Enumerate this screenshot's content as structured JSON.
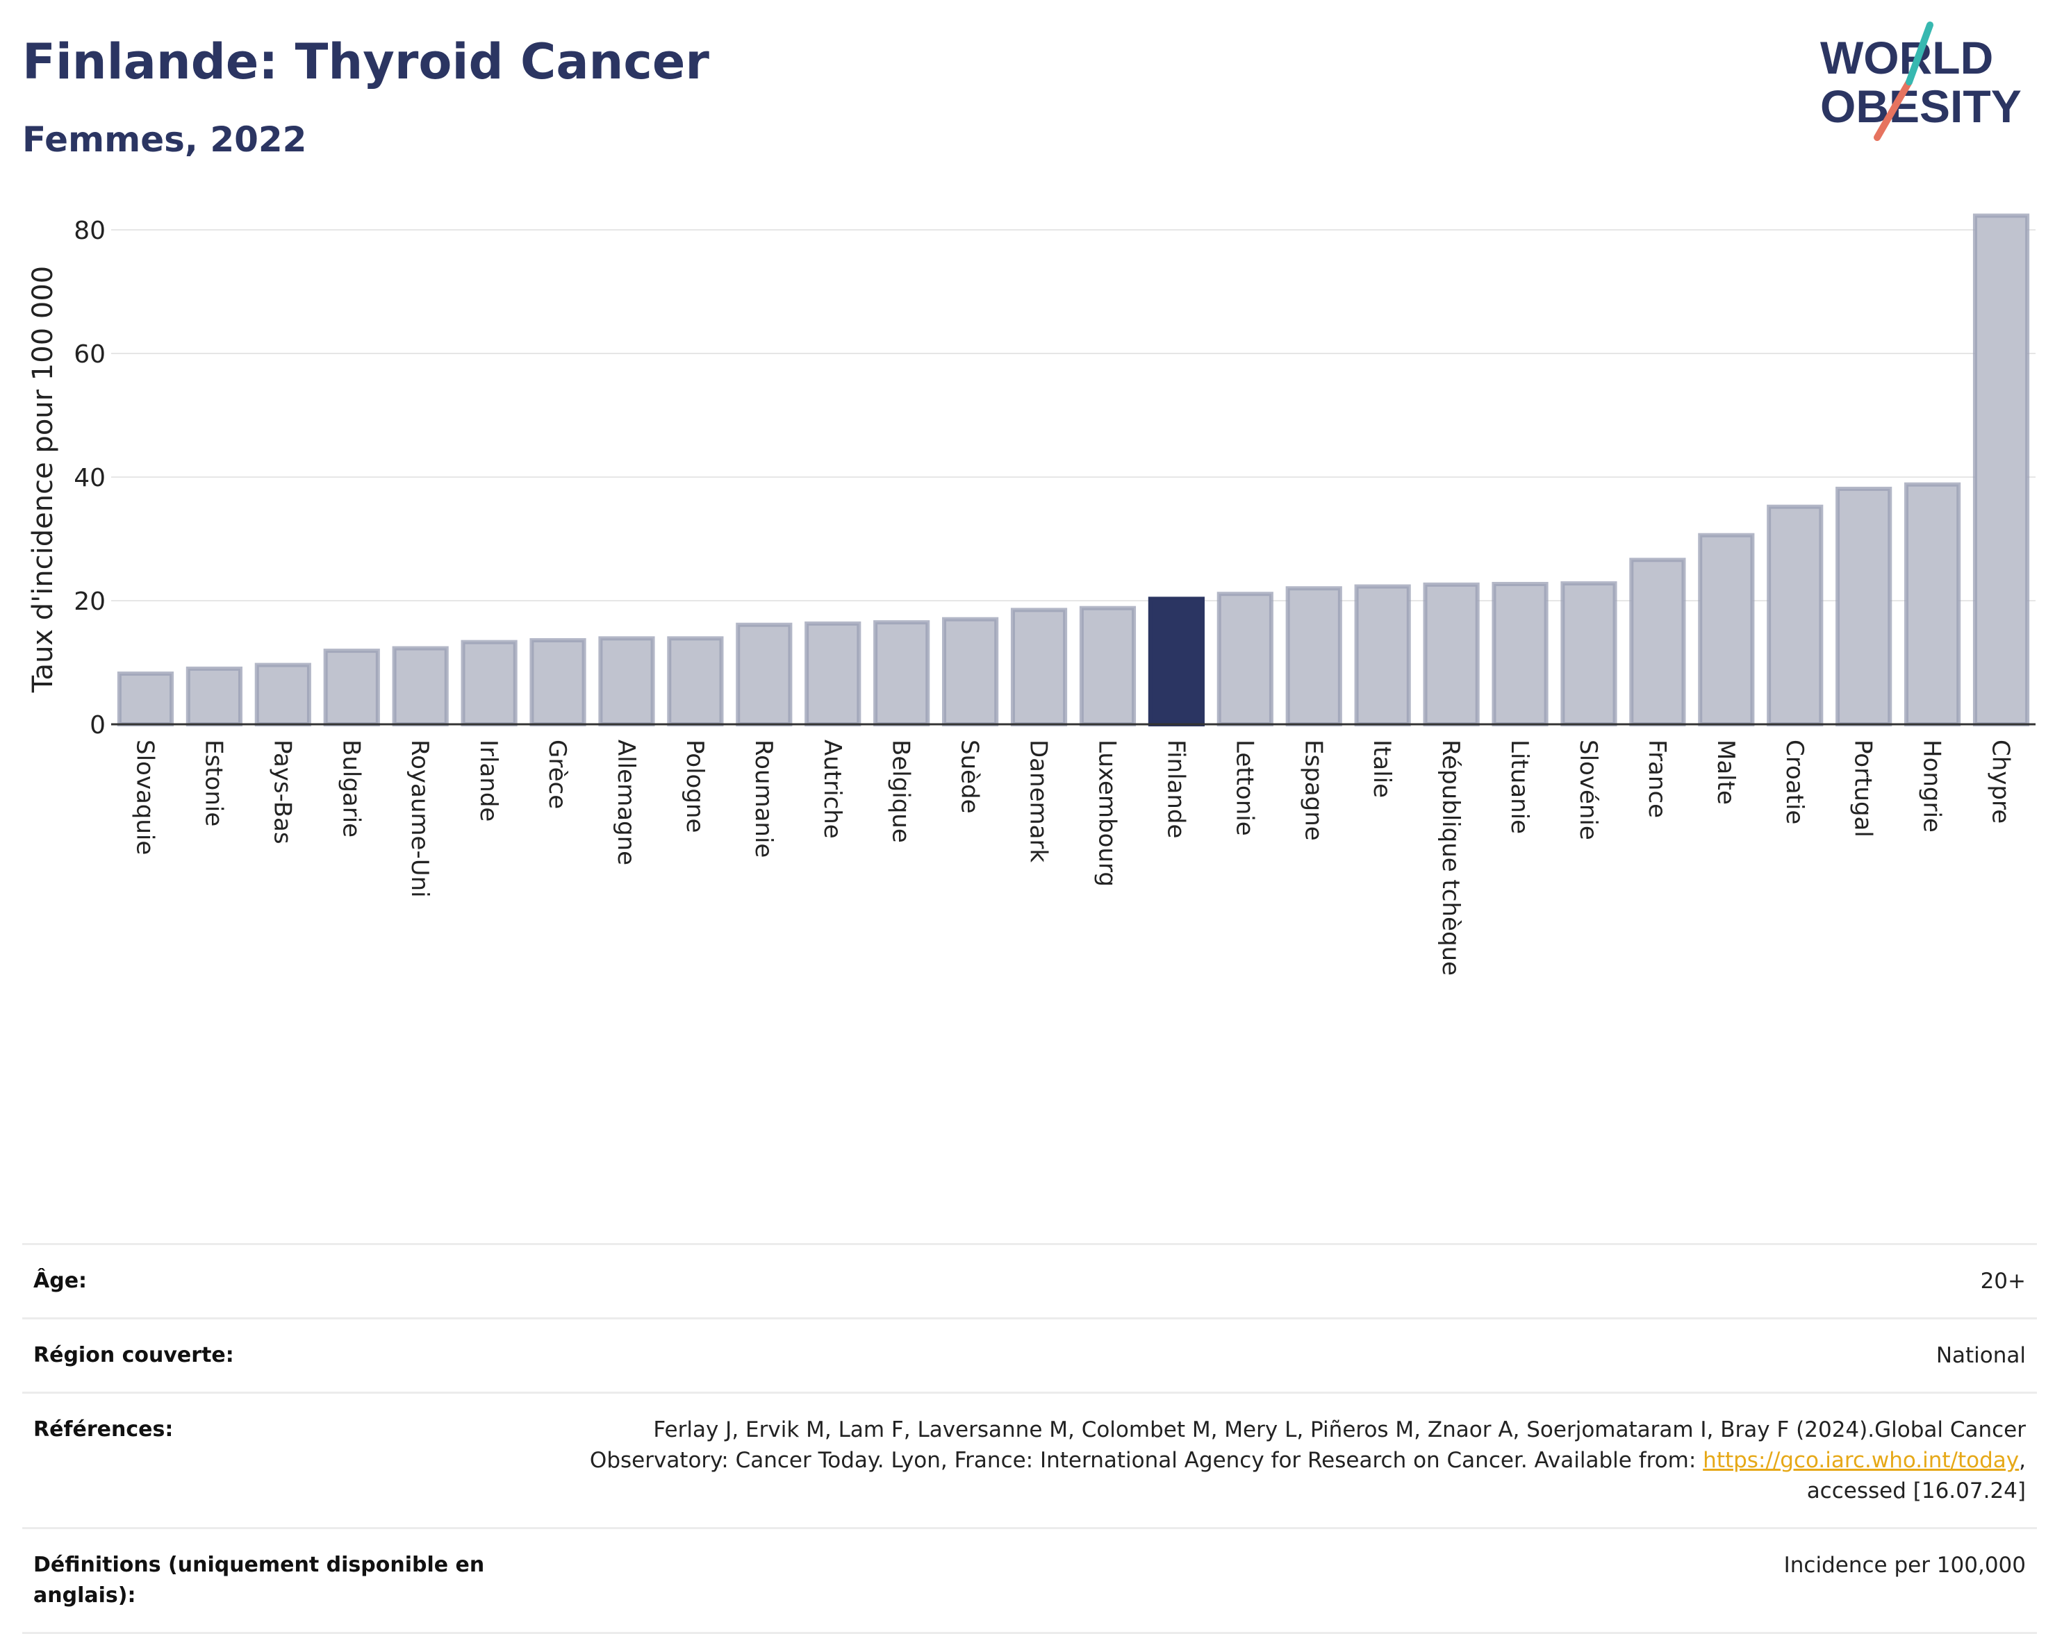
{
  "header": {
    "title": "Finlande: Thyroid Cancer",
    "subtitle": "Femmes, 2022"
  },
  "logo": {
    "line1": "WORLD",
    "line2": "OBESITY"
  },
  "colors": {
    "bar_default": "#c0c3cf",
    "bar_default_stroke": "#9a9fb4",
    "bar_highlight": "#2b3562",
    "accent_title": "#2b3562",
    "link": "#e6a817",
    "logo_teal": "#37b8b0",
    "logo_red": "#e6735f"
  },
  "chart_data": {
    "type": "bar",
    "title": "Finlande: Thyroid Cancer",
    "subtitle": "Femmes, 2022",
    "ylabel": "Taux d'incidence pour 100 000",
    "xlabel": "",
    "ylim": [
      0,
      85
    ],
    "yticks": [
      0,
      20,
      40,
      60,
      80
    ],
    "grid": true,
    "highlight": "Finlande",
    "categories": [
      "Slovaquie",
      "Estonie",
      "Pays-Bas",
      "Bulgarie",
      "Royaume-Uni",
      "Irlande",
      "Grèce",
      "Allemagne",
      "Pologne",
      "Roumanie",
      "Autriche",
      "Belgique",
      "Suède",
      "Danemark",
      "Luxembourg",
      "Finlande",
      "Lettonie",
      "Espagne",
      "Italie",
      "République tchèque",
      "Lituanie",
      "Slovénie",
      "France",
      "Malte",
      "Croatie",
      "Portugal",
      "Hongrie",
      "Chypre"
    ],
    "values": [
      8.2,
      9.0,
      9.6,
      11.9,
      12.3,
      13.3,
      13.6,
      13.9,
      13.9,
      16.1,
      16.3,
      16.5,
      17.0,
      18.5,
      18.8,
      20.3,
      21.1,
      22.0,
      22.3,
      22.6,
      22.7,
      22.8,
      26.6,
      30.6,
      35.2,
      38.1,
      38.8,
      82.3
    ]
  },
  "info": {
    "rows": [
      {
        "key": "Âge:",
        "value": "20+"
      },
      {
        "key": "Région couverte:",
        "value": "National"
      },
      {
        "key": "Références:",
        "value_pre": "Ferlay J, Ervik M, Lam F, Laversanne M, Colombet M, Mery L, Piñeros M, Znaor A, Soerjomataram I, Bray F (2024).Global Cancer Observatory: Cancer Today. Lyon, France: International Agency for Research on Cancer. Available from: ",
        "link": "https://gco.iarc.who.int/today",
        "value_post": ", accessed [16.07.24]"
      },
      {
        "key": "Définitions (uniquement disponible en anglais):",
        "value": "Incidence per 100,000"
      }
    ]
  }
}
